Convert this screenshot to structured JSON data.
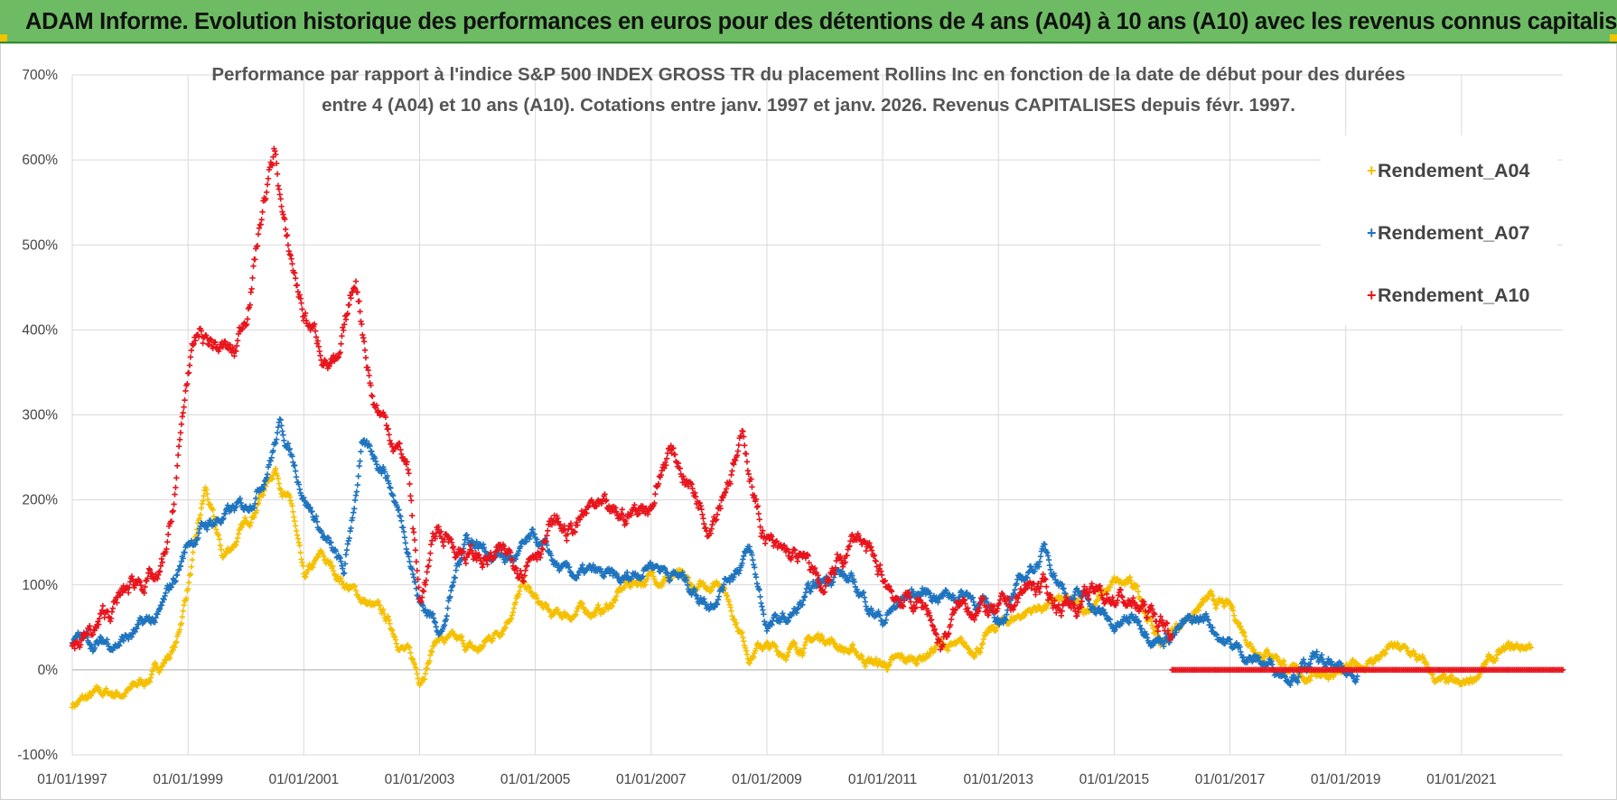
{
  "header": {
    "title": "ADAM Informe. Evolution historique des performances en euros pour des détentions de 4 ans (A04) à 10 ans (A10) avec les revenus connus capitalisés",
    "bg_color": "#6dbb63"
  },
  "chart_data": {
    "type": "scatter",
    "title_lines": [
      "Performance par rapport à l'indice S&P 500 INDEX GROSS TR  du placement Rollins Inc en fonction de la date de début pour des durées",
      "entre 4 (A04) et 10 ans (A10).  Cotations entre janv. 1997 et janv. 2026. Revenus CAPITALISES depuis févr. 1997."
    ],
    "xlabel": "",
    "ylabel": "",
    "xlim": [
      1997.0,
      2022.75
    ],
    "ylim": [
      -100,
      700
    ],
    "yticks": [
      -100,
      0,
      100,
      200,
      300,
      400,
      500,
      600,
      700
    ],
    "ytick_labels": [
      "-100%",
      "0%",
      "100%",
      "200%",
      "300%",
      "400%",
      "500%",
      "600%",
      "700%"
    ],
    "xticks": [
      1997,
      1999,
      2001,
      2003,
      2005,
      2007,
      2009,
      2011,
      2013,
      2015,
      2017,
      2019,
      2021
    ],
    "xtick_labels": [
      "01/01/1997",
      "01/01/1999",
      "01/01/2001",
      "01/01/2003",
      "01/01/2005",
      "01/01/2007",
      "01/01/2009",
      "01/01/2011",
      "01/01/2013",
      "01/01/2015",
      "01/01/2017",
      "01/01/2019",
      "01/01/2021"
    ],
    "grid": true,
    "legend_position": "top-right",
    "marker": "+",
    "series": [
      {
        "name": "Rendement_A04",
        "color": "#f5c000",
        "x": [
          1997.0,
          1997.5,
          1998.0,
          1998.4,
          1998.8,
          1999.0,
          1999.3,
          1999.6,
          2000.0,
          2000.5,
          2000.8,
          2001.0,
          2001.3,
          2001.6,
          2001.9,
          2002.4,
          2002.8,
          2003.0,
          2003.3,
          2003.6,
          2004.0,
          2004.4,
          2004.8,
          2005.0,
          2005.3,
          2005.8,
          2006.2,
          2006.6,
          2007.0,
          2007.4,
          2007.8,
          2008.2,
          2008.7,
          2008.9,
          2009.2,
          2009.6,
          2010.0,
          2010.5,
          2011.0,
          2011.5,
          2012.0,
          2012.5,
          2013.0,
          2013.5,
          2014.0,
          2014.5,
          2015.0,
          2015.4,
          2015.8,
          2016.2,
          2016.6,
          2017.0,
          2017.4,
          2017.8,
          2018.2,
          2018.6,
          2019.0,
          2019.4,
          2019.8,
          2020.2,
          2020.6,
          2021.0,
          2021.4,
          2021.8,
          2022.2
        ],
        "y": [
          -40,
          -30,
          -25,
          -5,
          30,
          100,
          210,
          130,
          170,
          240,
          190,
          100,
          130,
          110,
          90,
          60,
          20,
          -10,
          40,
          30,
          20,
          50,
          100,
          80,
          60,
          70,
          70,
          100,
          110,
          110,
          90,
          110,
          20,
          30,
          20,
          30,
          40,
          20,
          5,
          10,
          30,
          20,
          50,
          70,
          80,
          70,
          100,
          95,
          30,
          60,
          80,
          70,
          30,
          20,
          -10,
          0,
          -5,
          10,
          25,
          15,
          -15,
          -25,
          5,
          20,
          30
        ]
      },
      {
        "name": "Rendement_A07",
        "color": "#1f74bf",
        "x": [
          1997.0,
          1997.5,
          1998.0,
          1998.5,
          1998.8,
          1999.0,
          1999.3,
          1999.6,
          2000.0,
          2000.3,
          2000.6,
          2001.0,
          2001.4,
          2001.7,
          2002.0,
          2002.4,
          2002.8,
          2003.0,
          2003.4,
          2003.8,
          2004.2,
          2004.6,
          2005.0,
          2005.5,
          2006.0,
          2006.5,
          2007.0,
          2007.5,
          2008.0,
          2008.3,
          2008.7,
          2009.0,
          2009.4,
          2009.8,
          2010.2,
          2010.6,
          2011.0,
          2011.5,
          2012.0,
          2012.5,
          2013.0,
          2013.4,
          2013.8,
          2014.2,
          2014.6,
          2015.0,
          2015.4,
          2015.8,
          2016.2,
          2016.6,
          2017.0,
          2017.5,
          2018.0,
          2018.5,
          2019.0,
          2019.2
        ],
        "y": [
          35,
          30,
          40,
          60,
          110,
          150,
          170,
          180,
          190,
          230,
          290,
          210,
          150,
          110,
          260,
          240,
          150,
          80,
          50,
          160,
          140,
          130,
          150,
          110,
          110,
          100,
          130,
          110,
          80,
          110,
          140,
          50,
          60,
          90,
          120,
          90,
          60,
          90,
          90,
          90,
          60,
          100,
          140,
          90,
          80,
          50,
          60,
          40,
          50,
          60,
          30,
          10,
          0,
          10,
          -10,
          0
        ]
      },
      {
        "name": "Rendement_A10",
        "color": "#e8141c",
        "x": [
          1997.0,
          1997.4,
          1997.8,
          1998.2,
          1998.5,
          1998.7,
          1999.0,
          1999.2,
          1999.5,
          1999.8,
          2000.0,
          2000.3,
          2000.5,
          2000.7,
          2001.0,
          2001.3,
          2001.6,
          2001.9,
          2002.2,
          2002.5,
          2002.8,
          2003.0,
          2003.3,
          2003.6,
          2004.0,
          2004.4,
          2004.8,
          2005.0,
          2005.3,
          2005.6,
          2006.0,
          2006.3,
          2006.6,
          2007.0,
          2007.3,
          2007.6,
          2008.0,
          2008.3,
          2008.6,
          2008.9,
          2009.2,
          2009.5,
          2009.8,
          2010.0,
          2010.3,
          2010.6,
          2010.9,
          2011.2,
          2011.5,
          2011.8,
          2012.0,
          2012.3,
          2012.6,
          2013.0,
          2013.3,
          2013.6,
          2014.0,
          2014.5,
          2015.0,
          2015.5,
          2015.9,
          2016.0
        ],
        "y": [
          30,
          45,
          80,
          110,
          100,
          160,
          350,
          390,
          380,
          370,
          420,
          550,
          610,
          500,
          420,
          380,
          350,
          460,
          320,
          280,
          240,
          80,
          160,
          150,
          130,
          130,
          130,
          150,
          170,
          160,
          190,
          170,
          180,
          200,
          260,
          230,
          180,
          230,
          270,
          170,
          130,
          130,
          110,
          90,
          130,
          160,
          110,
          90,
          80,
          70,
          30,
          70,
          80,
          60,
          80,
          100,
          80,
          80,
          90,
          70,
          50,
          40
        ]
      }
    ],
    "a10_zero_line": {
      "x_start": 2016.0,
      "x_end": 2022.75,
      "y": 0
    }
  }
}
